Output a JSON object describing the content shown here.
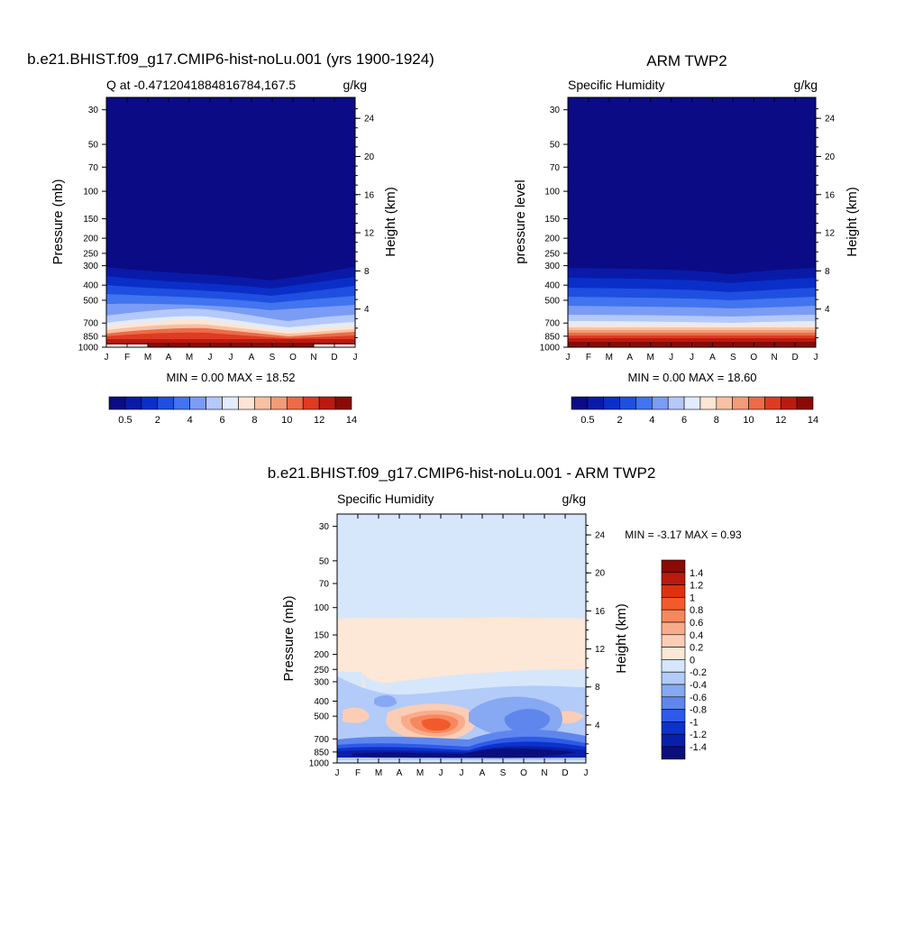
{
  "months": [
    "J",
    "F",
    "M",
    "A",
    "M",
    "J",
    "J",
    "A",
    "S",
    "O",
    "N",
    "D",
    "J"
  ],
  "pressure_ticks": [
    30,
    50,
    70,
    100,
    150,
    200,
    250,
    300,
    400,
    500,
    700,
    850,
    1000
  ],
  "height_ticks": [
    4,
    8,
    12,
    16,
    20,
    24
  ],
  "colors": {
    "abs": [
      "#0b0b85",
      "#0a1aa8",
      "#0a2fc8",
      "#1f4fe0",
      "#4174ee",
      "#7a9cf5",
      "#b4c8fa",
      "#e2ecfd",
      "#fde5d4",
      "#f7c1a3",
      "#f29b78",
      "#ec6b48",
      "#de3b22",
      "#bb1a10",
      "#8a0a06"
    ],
    "diff": [
      "#8a0a06",
      "#b81a0b",
      "#dd3210",
      "#f25a2c",
      "#f7885d",
      "#f9ac8c",
      "#fccdb5",
      "#fde7d6",
      "#d6e7fb",
      "#b2cbf8",
      "#87a8f2",
      "#5f86ec",
      "#2f5ae8",
      "#0c32cc",
      "#0a1fa8",
      "#0a0f7c"
    ]
  },
  "panels": {
    "model": {
      "title": "b.e21.BHIST.f09_g17.CMIP6-hist-noLu.001 (yrs 1900-1924)",
      "left_label": "Q at -0.4712041884816784,167.5",
      "right_label": "g/kg",
      "ylabel": "Pressure (mb)",
      "y2label": "Height (km)",
      "minmax": "MIN =   0.00 MAX =  18.52"
    },
    "obs": {
      "title": "ARM TWP2",
      "left_label": "Specific Humidity",
      "right_label": "g/kg",
      "ylabel": "pressure level",
      "y2label": "Height (km)",
      "minmax": "MIN =   0.00 MAX =  18.60"
    },
    "diff": {
      "title": "b.e21.BHIST.f09_g17.CMIP6-hist-noLu.001 - ARM TWP2",
      "left_label": "Specific Humidity",
      "right_label": "g/kg",
      "ylabel": "Pressure (mb)",
      "y2label": "Height (km)",
      "minmax": "MIN =  -3.17 MAX =   0.93"
    }
  },
  "colorbars": {
    "abs_labels": [
      "0.5",
      "2",
      "4",
      "6",
      "8",
      "10",
      "12",
      "14"
    ],
    "diff_labels": [
      "1.4",
      "1.2",
      "1",
      "0.8",
      "0.6",
      "0.4",
      "0.2",
      "0",
      "-0.2",
      "-0.4",
      "-0.6",
      "-0.8",
      "-1",
      "-1.2",
      "-1.4"
    ]
  },
  "chart_data": [
    {
      "type": "heatmap",
      "title": "b.e21.BHIST.f09_g17.CMIP6-hist-noLu.001 (yrs 1900-1924)",
      "subtitle": "Q at -0.4712041884816784,167.5",
      "units": "g/kg",
      "x": [
        "J",
        "F",
        "M",
        "A",
        "M",
        "J",
        "J",
        "A",
        "S",
        "O",
        "N",
        "D",
        "J"
      ],
      "ylabel": "Pressure (mb)",
      "y2label": "Height (km)",
      "ylim": [
        1000,
        25
      ],
      "y_scale": "log",
      "levels_hPa": [
        1000,
        850,
        700,
        500,
        400,
        300,
        150,
        30
      ],
      "values": [
        [
          18.2,
          18.0,
          18.4,
          18.5,
          18.3,
          18.1,
          17.9,
          17.9,
          18.0,
          18.1,
          18.2,
          18.3,
          18.2
        ],
        [
          10.0,
          9.8,
          10.2,
          10.5,
          10.4,
          10.0,
          9.6,
          9.4,
          9.0,
          9.2,
          9.6,
          9.8,
          10.0
        ],
        [
          6.6,
          6.4,
          6.8,
          7.4,
          7.4,
          7.0,
          6.4,
          6.0,
          5.4,
          5.4,
          6.0,
          6.4,
          6.6
        ],
        [
          3.0,
          2.9,
          3.1,
          3.3,
          3.3,
          3.1,
          2.9,
          2.7,
          2.4,
          2.4,
          2.7,
          2.9,
          3.0
        ],
        [
          1.6,
          1.6,
          1.7,
          1.8,
          1.8,
          1.7,
          1.6,
          1.5,
          1.3,
          1.3,
          1.5,
          1.6,
          1.6
        ],
        [
          0.5,
          0.5,
          0.5,
          0.6,
          0.6,
          0.5,
          0.5,
          0.4,
          0.4,
          0.4,
          0.4,
          0.5,
          0.5
        ],
        [
          0.05,
          0.05,
          0.05,
          0.05,
          0.05,
          0.05,
          0.05,
          0.05,
          0.05,
          0.05,
          0.05,
          0.05,
          0.05
        ],
        [
          0.0,
          0.0,
          0.0,
          0.0,
          0.0,
          0.0,
          0.0,
          0.0,
          0.0,
          0.0,
          0.0,
          0.0,
          0.0
        ]
      ],
      "min": 0.0,
      "max": 18.52,
      "color_levels": [
        0.5,
        1,
        2,
        3,
        4,
        5,
        6,
        7,
        8,
        9,
        10,
        11,
        12,
        13,
        14
      ]
    },
    {
      "type": "heatmap",
      "title": "ARM TWP2",
      "subtitle": "Specific Humidity",
      "units": "g/kg",
      "x": [
        "J",
        "F",
        "M",
        "A",
        "M",
        "J",
        "J",
        "A",
        "S",
        "O",
        "N",
        "D",
        "J"
      ],
      "ylabel": "pressure level",
      "y2label": "Height (km)",
      "ylim": [
        1000,
        25
      ],
      "y_scale": "log",
      "levels_hPa": [
        1000,
        850,
        700,
        500,
        400,
        300,
        150,
        30
      ],
      "values": [
        [
          18.4,
          18.4,
          18.5,
          18.6,
          18.6,
          18.5,
          18.4,
          18.4,
          18.4,
          18.5,
          18.5,
          18.5,
          18.4
        ],
        [
          10.6,
          10.5,
          10.6,
          10.7,
          10.6,
          10.5,
          10.4,
          10.5,
          10.6,
          10.7,
          10.7,
          10.7,
          10.6
        ],
        [
          7.0,
          7.0,
          7.1,
          7.2,
          7.1,
          7.0,
          6.9,
          7.0,
          7.1,
          7.2,
          7.2,
          7.1,
          7.0
        ],
        [
          3.3,
          3.2,
          3.3,
          3.4,
          3.3,
          3.2,
          3.1,
          3.1,
          3.2,
          3.3,
          3.3,
          3.3,
          3.3
        ],
        [
          1.7,
          1.7,
          1.8,
          1.8,
          1.8,
          1.7,
          1.6,
          1.6,
          1.7,
          1.7,
          1.7,
          1.7,
          1.7
        ],
        [
          0.5,
          0.5,
          0.5,
          0.5,
          0.5,
          0.5,
          0.5,
          0.5,
          0.5,
          0.5,
          0.5,
          0.5,
          0.5
        ],
        [
          0.05,
          0.05,
          0.05,
          0.05,
          0.05,
          0.05,
          0.05,
          0.05,
          0.05,
          0.05,
          0.05,
          0.05,
          0.05
        ],
        [
          0.0,
          0.0,
          0.0,
          0.0,
          0.0,
          0.0,
          0.0,
          0.0,
          0.0,
          0.0,
          0.0,
          0.0,
          0.0
        ]
      ],
      "min": 0.0,
      "max": 18.6,
      "color_levels": [
        0.5,
        1,
        2,
        3,
        4,
        5,
        6,
        7,
        8,
        9,
        10,
        11,
        12,
        13,
        14
      ]
    },
    {
      "type": "heatmap",
      "title": "b.e21.BHIST.f09_g17.CMIP6-hist-noLu.001 - ARM TWP2",
      "subtitle": "Specific Humidity",
      "units": "g/kg",
      "x": [
        "J",
        "F",
        "M",
        "A",
        "M",
        "J",
        "J",
        "A",
        "S",
        "O",
        "N",
        "D",
        "J"
      ],
      "ylabel": "Pressure (mb)",
      "y2label": "Height (km)",
      "ylim": [
        1000,
        25
      ],
      "y_scale": "log",
      "levels_hPa": [
        1000,
        850,
        700,
        500,
        400,
        300,
        200,
        150,
        30
      ],
      "values": [
        [
          -0.3,
          -0.4,
          -0.2,
          -0.2,
          -0.3,
          -0.5,
          -0.5,
          -0.5,
          -0.4,
          -0.4,
          -0.3,
          -0.3,
          -0.3
        ],
        [
          -1.4,
          -1.5,
          -1.4,
          -1.3,
          -1.3,
          -1.4,
          -1.3,
          -1.5,
          -2.0,
          -2.4,
          -1.8,
          -1.5,
          -1.4
        ],
        [
          -0.4,
          -0.6,
          -0.5,
          -0.4,
          -0.3,
          -0.4,
          -0.7,
          -1.0,
          -1.5,
          -1.6,
          -1.2,
          -0.8,
          -0.4
        ],
        [
          -0.2,
          0.2,
          -0.3,
          0.4,
          0.8,
          0.7,
          -0.2,
          -0.6,
          -0.7,
          -0.6,
          -0.3,
          0.2,
          -0.2
        ],
        [
          -0.2,
          -0.1,
          -0.4,
          -0.1,
          0.2,
          0.1,
          -0.3,
          -0.4,
          -0.5,
          -0.4,
          -0.3,
          -0.2,
          -0.2
        ],
        [
          0.0,
          0.1,
          0.0,
          -0.1,
          -0.1,
          -0.1,
          -0.1,
          -0.2,
          -0.2,
          -0.2,
          -0.2,
          -0.1,
          0.0
        ],
        [
          0.1,
          0.1,
          0.1,
          0.1,
          0.1,
          0.1,
          0.05,
          0.05,
          0.05,
          0.05,
          0.05,
          0.05,
          0.1
        ],
        [
          0.1,
          0.1,
          0.1,
          0.1,
          0.1,
          0.1,
          0.1,
          0.1,
          0.1,
          0.1,
          0.1,
          0.1,
          0.1
        ],
        [
          -0.05,
          -0.05,
          -0.05,
          -0.05,
          -0.05,
          -0.05,
          -0.05,
          -0.05,
          -0.05,
          -0.05,
          -0.05,
          -0.05,
          -0.05
        ]
      ],
      "min": -3.17,
      "max": 0.93,
      "color_levels": [
        -1.4,
        -1.2,
        -1.0,
        -0.8,
        -0.6,
        -0.4,
        -0.2,
        0,
        0.2,
        0.4,
        0.6,
        0.8,
        1.0,
        1.2,
        1.4
      ]
    }
  ]
}
